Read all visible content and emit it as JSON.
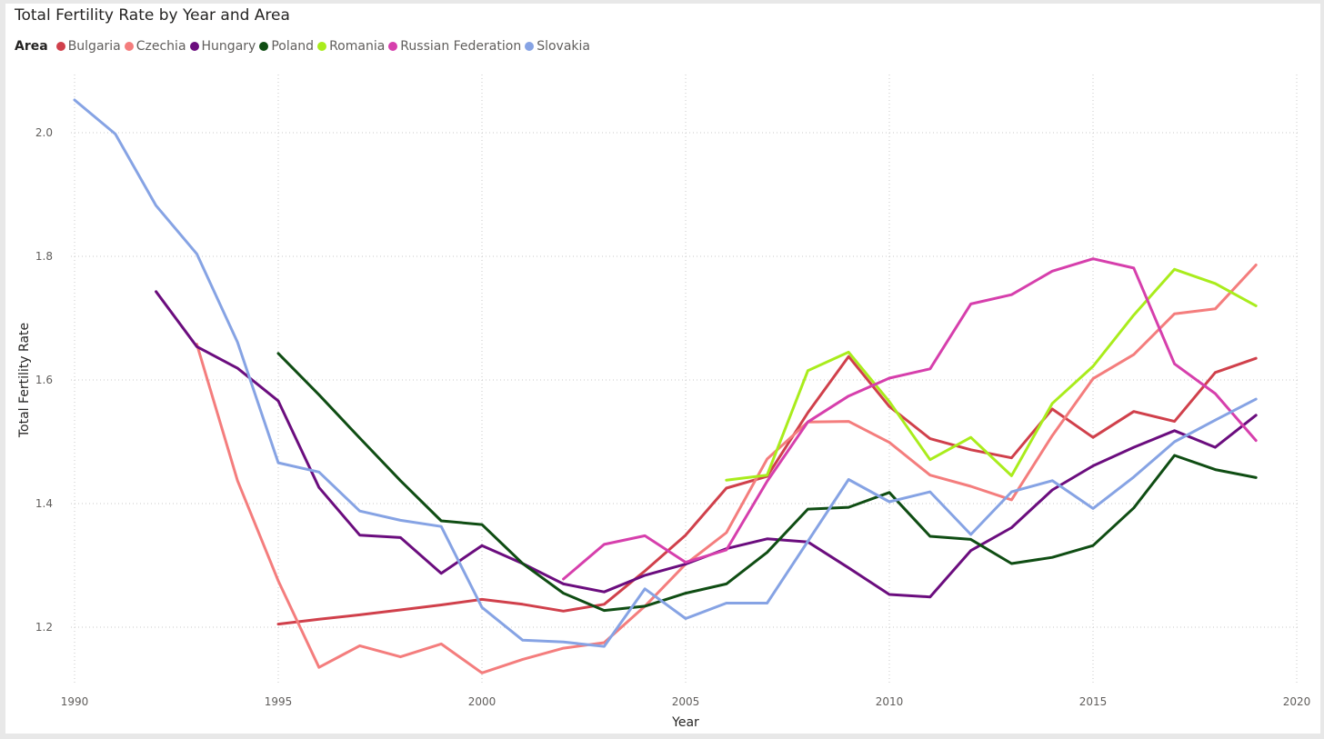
{
  "chart_data": {
    "type": "line",
    "title": "Total Fertility Rate by Year and Area",
    "legend_title": "Area",
    "legend_position": "top-left",
    "xlabel": "Year",
    "ylabel": "Total Fertility Rate",
    "xlim": [
      1990,
      2020
    ],
    "ylim": [
      1.1,
      2.1
    ],
    "xticks": [
      1990,
      1995,
      2000,
      2005,
      2010,
      2015,
      2020
    ],
    "yticks": [
      1.2,
      1.4,
      1.6,
      1.8,
      2.0
    ],
    "ytick_labels": [
      "1.2",
      "1.4",
      "1.6",
      "1.8",
      "2.0"
    ],
    "grid": true,
    "series": [
      {
        "name": "Bulgaria",
        "color": "#d0404b",
        "x": [
          1995,
          1996,
          1997,
          1998,
          1999,
          2000,
          2001,
          2002,
          2003,
          2004,
          2005,
          2006,
          2007,
          2008,
          2009,
          2010,
          2011,
          2012,
          2013,
          2014,
          2015,
          2016,
          2017,
          2018,
          2019
        ],
        "y": [
          1.205,
          1.213,
          1.22,
          1.228,
          1.236,
          1.245,
          1.237,
          1.226,
          1.237,
          1.291,
          1.349,
          1.425,
          1.444,
          1.547,
          1.638,
          1.557,
          1.505,
          1.487,
          1.474,
          1.553,
          1.507,
          1.549,
          1.533,
          1.612,
          1.635
        ]
      },
      {
        "name": "Czechia",
        "color": "#f47d7d",
        "x": [
          1993,
          1994,
          1995,
          1996,
          1997,
          1998,
          1999,
          2000,
          2001,
          2002,
          2003,
          2004,
          2005,
          2006,
          2007,
          2008,
          2009,
          2010,
          2011,
          2012,
          2013,
          2014,
          2015,
          2016,
          2017,
          2018,
          2019
        ],
        "y": [
          1.658,
          1.437,
          1.275,
          1.135,
          1.17,
          1.152,
          1.173,
          1.126,
          1.148,
          1.166,
          1.175,
          1.234,
          1.302,
          1.353,
          1.472,
          1.532,
          1.533,
          1.499,
          1.446,
          1.428,
          1.406,
          1.51,
          1.602,
          1.641,
          1.707,
          1.715,
          1.786
        ]
      },
      {
        "name": "Hungary",
        "color": "#6b0d7e",
        "x": [
          1992,
          1993,
          1994,
          1995,
          1996,
          1997,
          1998,
          1999,
          2000,
          2001,
          2002,
          2003,
          2004,
          2005,
          2006,
          2007,
          2008,
          2009,
          2010,
          2011,
          2012,
          2013,
          2014,
          2015,
          2016,
          2017,
          2018,
          2019
        ],
        "y": [
          1.743,
          1.654,
          1.619,
          1.566,
          1.426,
          1.349,
          1.345,
          1.287,
          1.332,
          1.303,
          1.27,
          1.257,
          1.284,
          1.302,
          1.327,
          1.343,
          1.338,
          1.296,
          1.253,
          1.249,
          1.324,
          1.361,
          1.422,
          1.461,
          1.491,
          1.518,
          1.491,
          1.543
        ]
      },
      {
        "name": "Poland",
        "color": "#0f4d13",
        "x": [
          1995,
          1996,
          1997,
          1998,
          1999,
          2000,
          2001,
          2002,
          2003,
          2004,
          2005,
          2006,
          2007,
          2008,
          2009,
          2010,
          2011,
          2012,
          2013,
          2014,
          2015,
          2016,
          2017,
          2018,
          2019
        ],
        "y": [
          1.643,
          1.576,
          1.506,
          1.437,
          1.372,
          1.366,
          1.303,
          1.255,
          1.227,
          1.234,
          1.255,
          1.27,
          1.321,
          1.391,
          1.394,
          1.418,
          1.347,
          1.342,
          1.303,
          1.313,
          1.332,
          1.393,
          1.478,
          1.455,
          1.442
        ]
      },
      {
        "name": "Romania",
        "color": "#a9ec1c",
        "x": [
          2006,
          2007,
          2008,
          2009,
          2010,
          2011,
          2012,
          2013,
          2014,
          2015,
          2016,
          2017,
          2018,
          2019
        ],
        "y": [
          1.438,
          1.446,
          1.615,
          1.645,
          1.565,
          1.471,
          1.507,
          1.445,
          1.562,
          1.622,
          1.705,
          1.779,
          1.756,
          1.72
        ]
      },
      {
        "name": "Russian Federation",
        "color": "#d63fac",
        "x": [
          2002,
          2003,
          2004,
          2005,
          2006,
          2007,
          2008,
          2009,
          2010,
          2011,
          2012,
          2013,
          2014,
          2015,
          2016,
          2017,
          2018,
          2019
        ],
        "y": [
          1.278,
          1.334,
          1.348,
          1.305,
          1.325,
          1.436,
          1.532,
          1.574,
          1.603,
          1.618,
          1.723,
          1.738,
          1.776,
          1.796,
          1.781,
          1.626,
          1.578,
          1.502
        ]
      },
      {
        "name": "Slovakia",
        "color": "#86a3e4",
        "x": [
          1990,
          1991,
          1992,
          1993,
          1994,
          1995,
          1996,
          1997,
          1998,
          1999,
          2000,
          2001,
          2002,
          2003,
          2004,
          2005,
          2006,
          2007,
          2008,
          2009,
          2010,
          2011,
          2012,
          2013,
          2014,
          2015,
          2016,
          2017,
          2018,
          2019
        ],
        "y": [
          2.053,
          1.998,
          1.882,
          1.804,
          1.661,
          1.466,
          1.451,
          1.388,
          1.373,
          1.363,
          1.232,
          1.179,
          1.176,
          1.169,
          1.262,
          1.214,
          1.239,
          1.239,
          1.339,
          1.439,
          1.403,
          1.419,
          1.35,
          1.419,
          1.437,
          1.392,
          1.443,
          1.5,
          1.535,
          1.569
        ]
      }
    ]
  }
}
